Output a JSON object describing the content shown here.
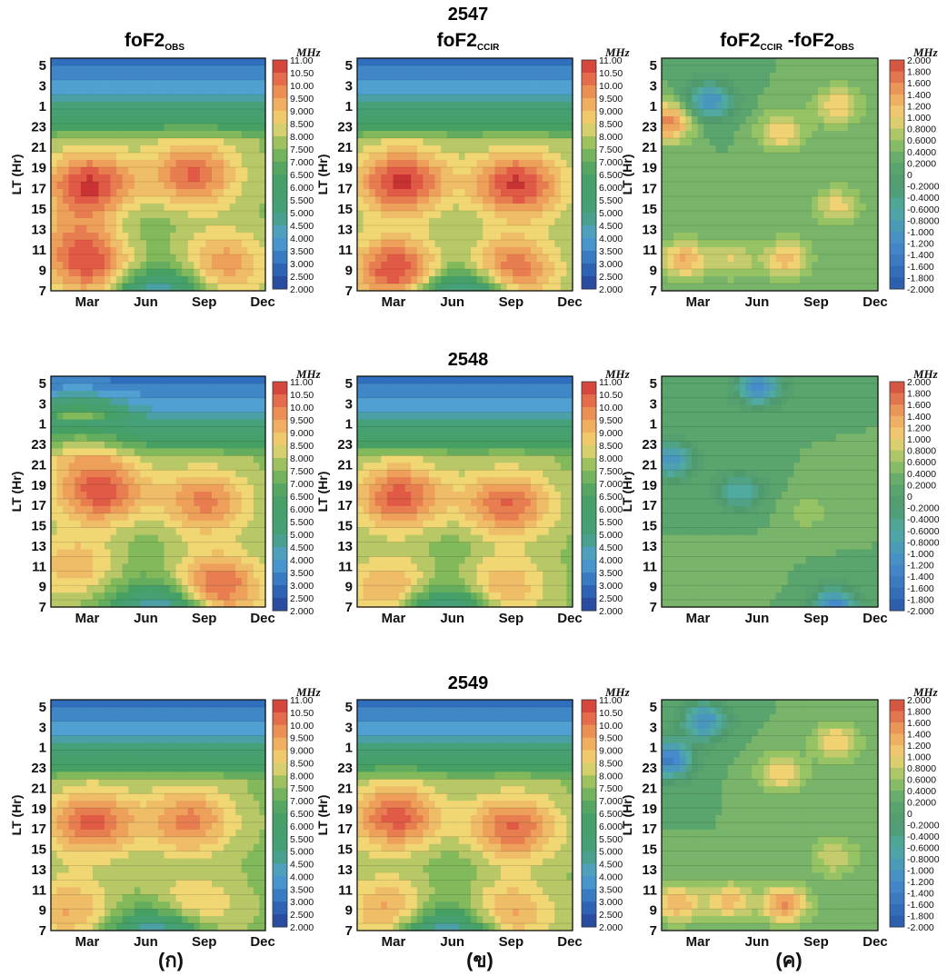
{
  "figure": {
    "year_titles": [
      "2547",
      "2548",
      "2549"
    ],
    "column_titles": [
      {
        "main": "foF2",
        "sub": "OBS"
      },
      {
        "main": "foF2",
        "sub": "CCIR"
      },
      {
        "main": "foF2",
        "sub": "CCIR",
        "minus": " -foF2",
        "sub2": "OBS"
      }
    ],
    "panel_letters": [
      "(ก)",
      "(ข)",
      "(ค)"
    ],
    "unit": "MHz",
    "y_axis_label": "LT (Hr)",
    "y_ticks": [
      "5",
      "3",
      "1",
      "23",
      "21",
      "19",
      "17",
      "15",
      "13",
      "11",
      "9",
      "7"
    ],
    "x_ticks": [
      "Mar",
      "Jun",
      "Sep",
      "Dec"
    ],
    "colorbar_foF2": [
      "11.00",
      "10.50",
      "10.00",
      "9.500",
      "9.000",
      "8.500",
      "8.000",
      "7.500",
      "7.000",
      "6.500",
      "6.000",
      "5.500",
      "5.000",
      "4.500",
      "4.000",
      "3.500",
      "3.000",
      "2.500",
      "2.000"
    ],
    "colorbar_diff": [
      "2.000",
      "1.800",
      "1.600",
      "1.400",
      "1.200",
      "1.000",
      "0.8000",
      "0.6000",
      "0.4000",
      "0.2000",
      "0",
      "-0.2000",
      "-0.4000",
      "-0.6000",
      "-0.8000",
      "-1.000",
      "-1.200",
      "-1.400",
      "-1.600",
      "-1.800",
      "-2.000"
    ]
  },
  "chart_data": [
    {
      "type": "heatmap",
      "title": "foF2 OBS",
      "year": "2547",
      "colorbar": "foF2",
      "zlim": [
        2,
        11
      ],
      "features": [
        {
          "x": 2.3,
          "y": 17,
          "v": 10.9
        },
        {
          "x": 7.9,
          "y": 18,
          "v": 10.3
        },
        {
          "x": 2.6,
          "y": 9,
          "v": 9.9
        },
        {
          "x": 9.5,
          "y": 9.5,
          "v": 9.6
        },
        {
          "x": 1.5,
          "y": 11.5,
          "v": 9.2
        },
        {
          "x": 4.9,
          "y": 13,
          "v": 7.2
        },
        {
          "x": 6,
          "y": 5.5,
          "v": 2.6
        }
      ]
    },
    {
      "type": "heatmap",
      "title": "foF2 CCIR",
      "year": "2547",
      "colorbar": "foF2",
      "zlim": [
        2,
        11
      ],
      "features": [
        {
          "x": 2.6,
          "y": 17.3,
          "v": 11
        },
        {
          "x": 8.8,
          "y": 17,
          "v": 10.9
        },
        {
          "x": 2.3,
          "y": 9,
          "v": 10.8
        },
        {
          "x": 8.5,
          "y": 9,
          "v": 10.4
        },
        {
          "x": 5.6,
          "y": 13,
          "v": 7.4
        },
        {
          "x": 6,
          "y": 5.5,
          "v": 2.4
        }
      ]
    },
    {
      "type": "heatmap",
      "title": "foF2 CCIR - foF2 OBS",
      "year": "2547",
      "colorbar": "diff",
      "zlim": [
        -2,
        2
      ],
      "features": [
        {
          "x": 1.4,
          "y": 10,
          "v": 1.3
        },
        {
          "x": 6.9,
          "y": 10,
          "v": 1.2
        },
        {
          "x": 6.6,
          "y": 22,
          "v": 1.1
        },
        {
          "x": 9.6,
          "y": 0.5,
          "v": 1.1
        },
        {
          "x": 9.6,
          "y": 15,
          "v": 1
        },
        {
          "x": 4,
          "y": 10,
          "v": 0.9
        },
        {
          "x": 2.8,
          "y": 1,
          "v": -1.1
        },
        {
          "x": 0.6,
          "y": 23,
          "v": 1.6
        }
      ]
    },
    {
      "type": "heatmap",
      "title": "foF2 OBS",
      "year": "2548",
      "colorbar": "foF2",
      "zlim": [
        2,
        11
      ],
      "features": [
        {
          "x": 2.9,
          "y": 18,
          "v": 10.6
        },
        {
          "x": 8.5,
          "y": 17,
          "v": 9.9
        },
        {
          "x": 9.2,
          "y": 9,
          "v": 10.4
        },
        {
          "x": 1.5,
          "y": 11,
          "v": 9.1
        },
        {
          "x": 1.7,
          "y": 23,
          "v": 8.8
        },
        {
          "x": 5,
          "y": 13,
          "v": 7.3
        },
        {
          "x": 6,
          "y": 5.5,
          "v": 2.5
        }
      ]
    },
    {
      "type": "heatmap",
      "title": "foF2 CCIR",
      "year": "2548",
      "colorbar": "foF2",
      "zlim": [
        2,
        11
      ],
      "features": [
        {
          "x": 2.5,
          "y": 17.5,
          "v": 10.5
        },
        {
          "x": 8.3,
          "y": 16.8,
          "v": 10.3
        },
        {
          "x": 2.2,
          "y": 8.6,
          "v": 9.6
        },
        {
          "x": 7.8,
          "y": 8.8,
          "v": 9.5
        },
        {
          "x": 5.6,
          "y": 12,
          "v": 7.2
        },
        {
          "x": 5,
          "y": 5.5,
          "v": 2.6
        }
      ]
    },
    {
      "type": "heatmap",
      "title": "foF2 CCIR - foF2 OBS",
      "year": "2548",
      "colorbar": "diff",
      "zlim": [
        -2,
        2
      ],
      "features": [
        {
          "x": 9.5,
          "y": 7,
          "v": -1.3
        },
        {
          "x": 5.4,
          "y": 4,
          "v": -1.2
        },
        {
          "x": 0.7,
          "y": 21,
          "v": -1
        },
        {
          "x": 4.4,
          "y": 18,
          "v": -0.7
        },
        {
          "x": 8,
          "y": 16,
          "v": 0.6
        },
        {
          "x": 4.5,
          "y": 11,
          "v": 0.5
        }
      ]
    },
    {
      "type": "heatmap",
      "title": "foF2 OBS",
      "year": "2549",
      "colorbar": "foF2",
      "zlim": [
        2,
        11
      ],
      "features": [
        {
          "x": 2.4,
          "y": 17.3,
          "v": 10.4
        },
        {
          "x": 7.7,
          "y": 17.5,
          "v": 9.9
        },
        {
          "x": 1.2,
          "y": 9,
          "v": 9.3
        },
        {
          "x": 7.8,
          "y": 9,
          "v": 9.1
        },
        {
          "x": 5.3,
          "y": 13,
          "v": 7.6
        },
        {
          "x": 6,
          "y": 5.5,
          "v": 2.3
        }
      ]
    },
    {
      "type": "heatmap",
      "title": "foF2 CCIR",
      "year": "2549",
      "colorbar": "foF2",
      "zlim": [
        2,
        11
      ],
      "features": [
        {
          "x": 2.3,
          "y": 17.8,
          "v": 10.5
        },
        {
          "x": 8.6,
          "y": 16.8,
          "v": 10.3
        },
        {
          "x": 2,
          "y": 9,
          "v": 9.5
        },
        {
          "x": 8.3,
          "y": 8.7,
          "v": 9.5
        },
        {
          "x": 5.6,
          "y": 12.5,
          "v": 7.2
        },
        {
          "x": 5,
          "y": 5.5,
          "v": 2.3
        }
      ]
    },
    {
      "type": "heatmap",
      "title": "foF2 CCIR - foF2 OBS",
      "year": "2549",
      "colorbar": "diff",
      "zlim": [
        -2,
        2
      ],
      "features": [
        {
          "x": 1,
          "y": 9.6,
          "v": 1.3
        },
        {
          "x": 3.8,
          "y": 9.8,
          "v": 1.2
        },
        {
          "x": 6.8,
          "y": 9.5,
          "v": 1.5
        },
        {
          "x": 6.6,
          "y": 22,
          "v": 1.1
        },
        {
          "x": 9.6,
          "y": 1,
          "v": 1.1
        },
        {
          "x": 9.5,
          "y": 14,
          "v": 0.9
        },
        {
          "x": 0.6,
          "y": 23.3,
          "v": -1.4
        },
        {
          "x": 2.5,
          "y": 3,
          "v": -1.1
        }
      ]
    }
  ]
}
